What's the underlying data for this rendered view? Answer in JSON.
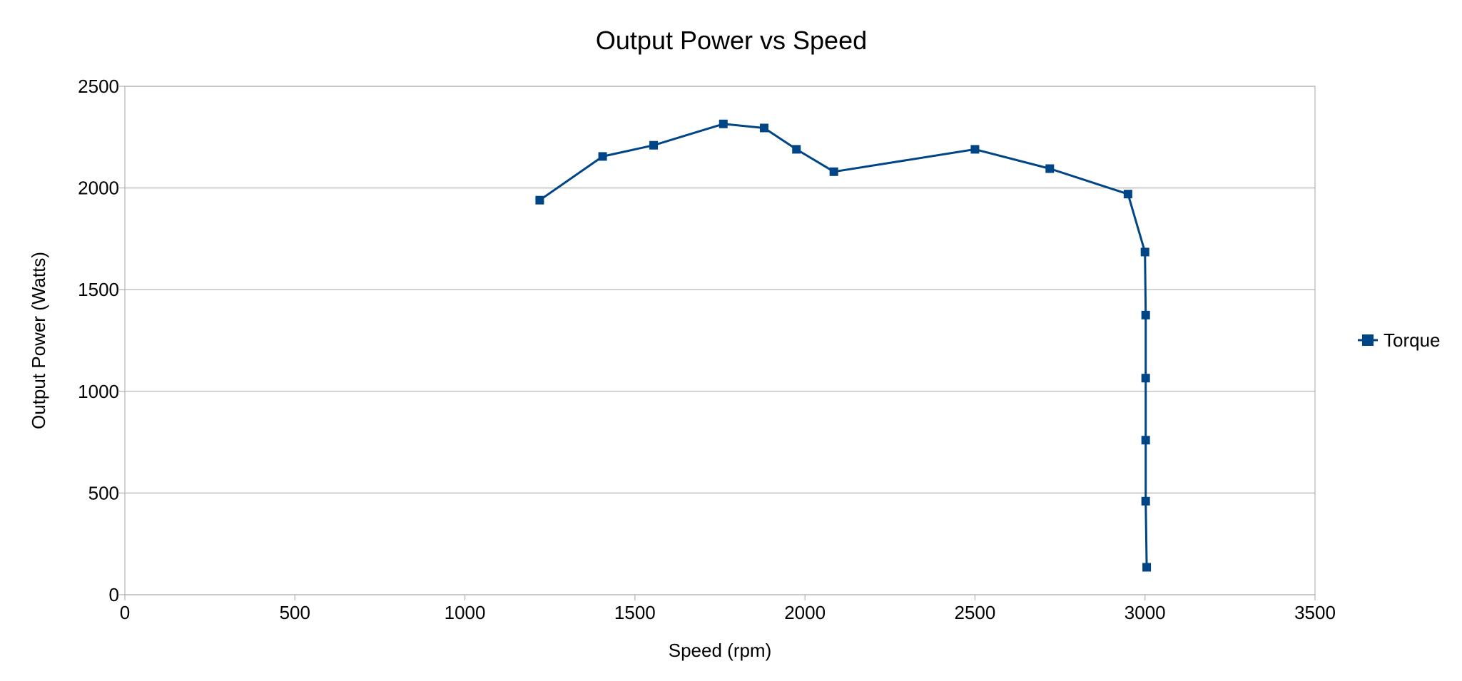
{
  "chart_data": {
    "type": "scatter",
    "title": "Output Power vs Speed",
    "xlabel": "Speed (rpm)",
    "ylabel": "Output Power (Watts)",
    "xlim": [
      0,
      3500
    ],
    "ylim": [
      0,
      2500
    ],
    "x_ticks": [
      0,
      500,
      1000,
      1500,
      2000,
      2500,
      3000,
      3500
    ],
    "y_ticks": [
      0,
      500,
      1000,
      1500,
      2000,
      2500
    ],
    "grid": "horizontal",
    "legend_position": "right",
    "lines_connected": true,
    "marker": "square",
    "series": [
      {
        "name": "Torque",
        "color": "#004586",
        "points": [
          {
            "x": 1220,
            "y": 1940
          },
          {
            "x": 1405,
            "y": 2155
          },
          {
            "x": 1555,
            "y": 2210
          },
          {
            "x": 1760,
            "y": 2315
          },
          {
            "x": 1880,
            "y": 2295
          },
          {
            "x": 1975,
            "y": 2190
          },
          {
            "x": 2085,
            "y": 2080
          },
          {
            "x": 2500,
            "y": 2190
          },
          {
            "x": 2720,
            "y": 2095
          },
          {
            "x": 2950,
            "y": 1970
          },
          {
            "x": 3000,
            "y": 1685
          },
          {
            "x": 3002,
            "y": 1375
          },
          {
            "x": 3002,
            "y": 1065
          },
          {
            "x": 3002,
            "y": 760
          },
          {
            "x": 3002,
            "y": 460
          },
          {
            "x": 3005,
            "y": 135
          }
        ]
      }
    ]
  }
}
